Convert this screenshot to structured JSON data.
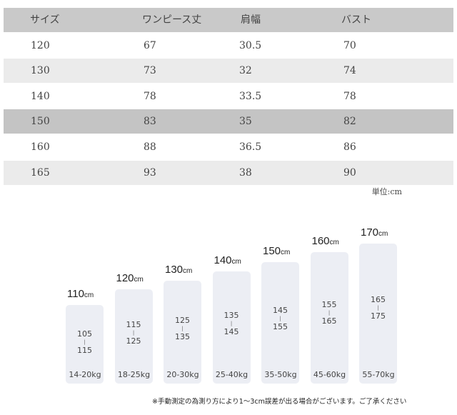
{
  "size_table": {
    "headers": [
      "サイズ",
      "ワンピース丈",
      "肩幅",
      "バスト"
    ],
    "rows": [
      [
        "120",
        "67",
        "30.5",
        "70"
      ],
      [
        "130",
        "73",
        "32",
        "74"
      ],
      [
        "140",
        "78",
        "33.5",
        "78"
      ],
      [
        "150",
        "83",
        "35",
        "82"
      ],
      [
        "160",
        "88",
        "36.5",
        "86"
      ],
      [
        "165",
        "93",
        "38",
        "90"
      ]
    ],
    "unit": "単位:cm"
  },
  "height_chart": {
    "unit": "cm",
    "bars": [
      {
        "height": "110",
        "range_low": "105",
        "range_high": "115",
        "weight": "14-20kg"
      },
      {
        "height": "120",
        "range_low": "115",
        "range_high": "125",
        "weight": "18-25kg"
      },
      {
        "height": "130",
        "range_low": "125",
        "range_high": "135",
        "weight": "20-30kg"
      },
      {
        "height": "140",
        "range_low": "135",
        "range_high": "145",
        "weight": "25-40kg"
      },
      {
        "height": "150",
        "range_low": "145",
        "range_high": "155",
        "weight": "35-50kg"
      },
      {
        "height": "160",
        "range_low": "155",
        "range_high": "165",
        "weight": "45-60kg"
      },
      {
        "height": "170",
        "range_low": "165",
        "range_high": "175",
        "weight": "55-70kg"
      }
    ]
  },
  "note": "※手動測定の為測り方により1～3cm誤差が出る場合がございます。ご了承ください"
}
